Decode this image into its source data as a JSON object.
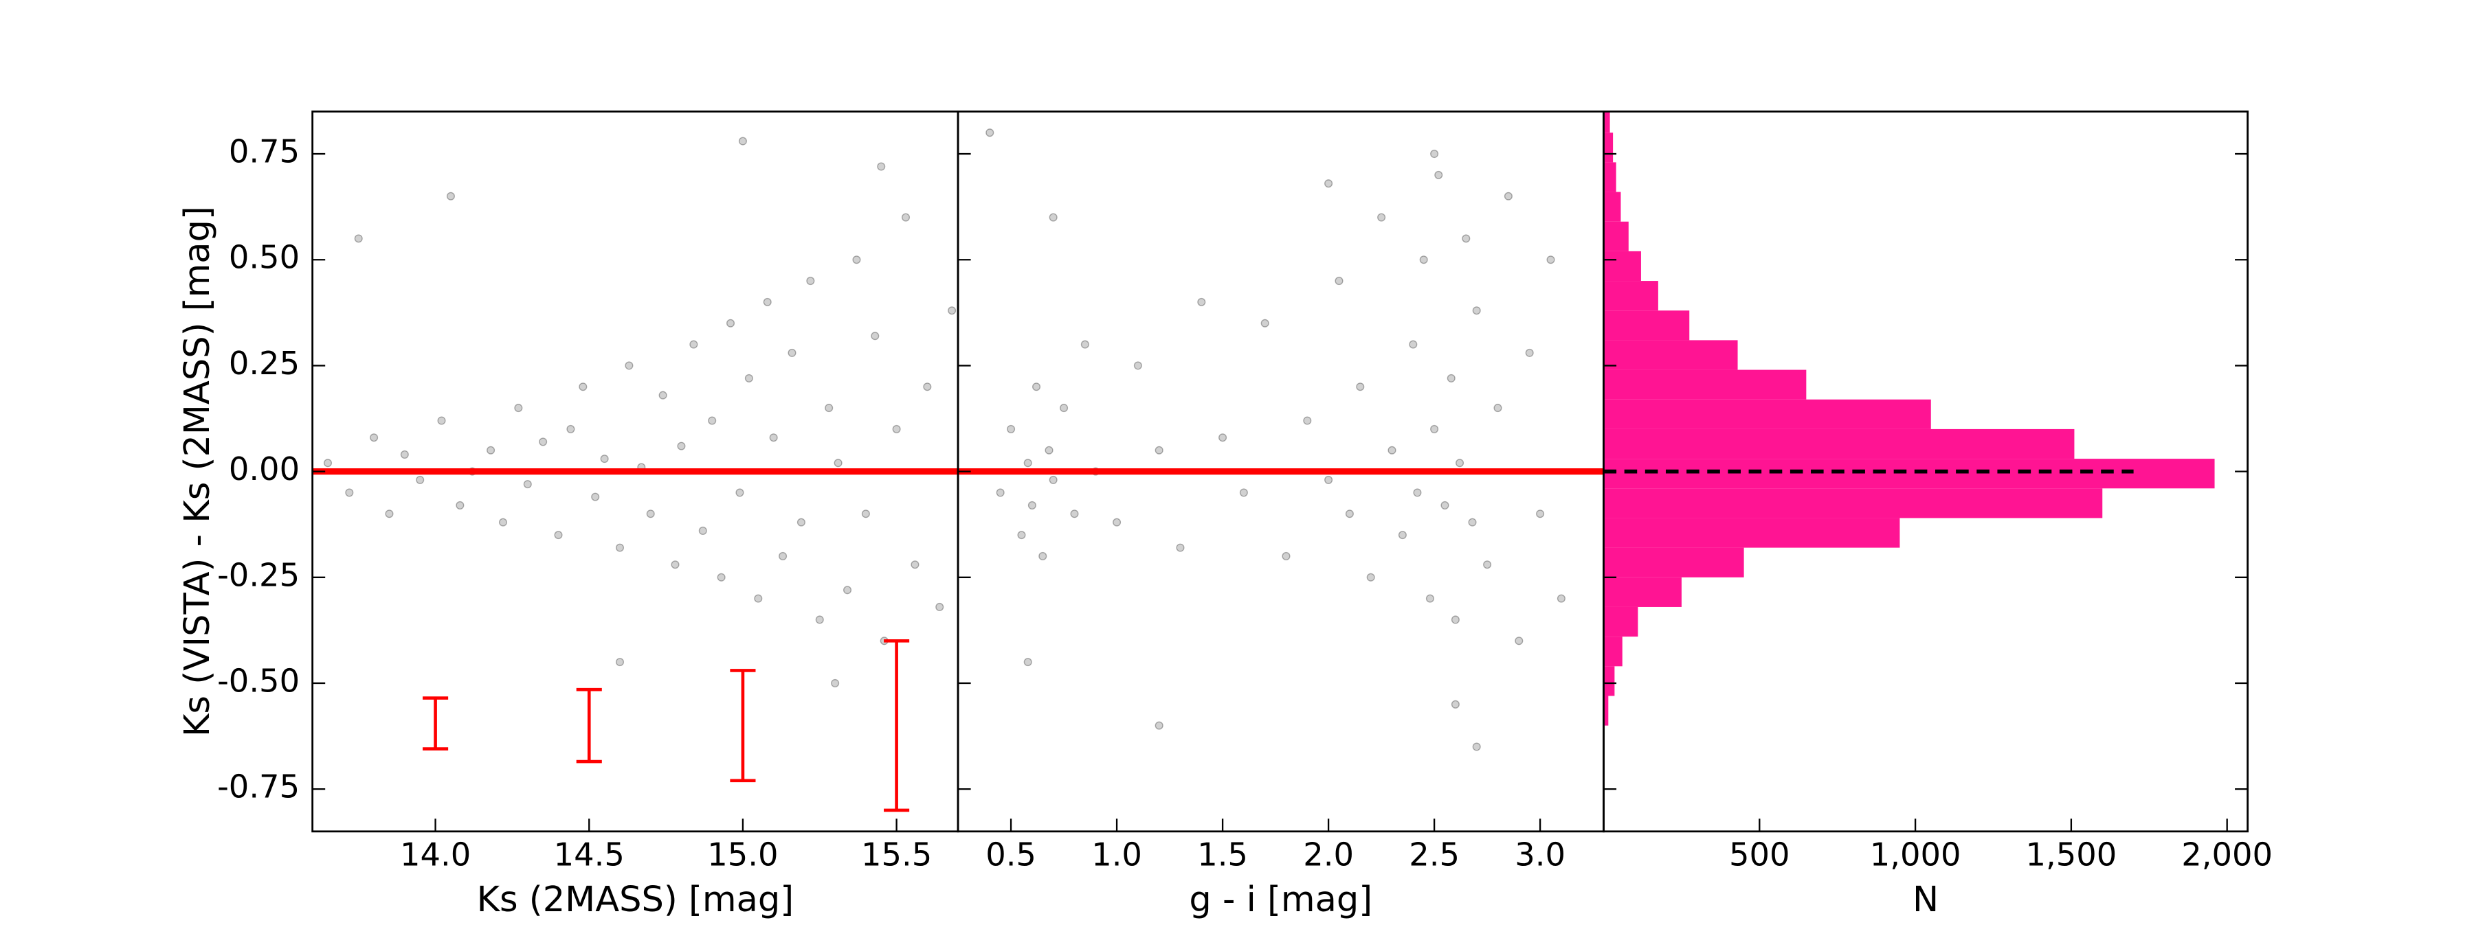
{
  "chart_data": [
    {
      "type": "scatter",
      "xlabel": "Ks (2MASS) [mag]",
      "ylabel": "Ks (VISTA) - Ks (2MASS) [mag]",
      "color": "#000000",
      "x": [
        13.65,
        13.72,
        13.8,
        13.85,
        13.9,
        13.95,
        14.02,
        14.08,
        14.12,
        14.18,
        14.22,
        14.27,
        14.3,
        14.35,
        14.4,
        14.44,
        14.48,
        14.52,
        14.55,
        14.6,
        14.63,
        14.67,
        14.7,
        14.74,
        14.78,
        14.8,
        14.84,
        14.87,
        14.9,
        14.93,
        14.96,
        14.99,
        15.02,
        15.05,
        15.08,
        15.1,
        15.13,
        15.16,
        15.19,
        15.22,
        15.25,
        15.28,
        15.31,
        15.34,
        15.37,
        15.4,
        15.43,
        15.46,
        15.5,
        15.53,
        15.56,
        15.6,
        15.64,
        15.68,
        14.05,
        14.6,
        15.0,
        15.3,
        13.75,
        15.45
      ],
      "y": [
        0.02,
        -0.05,
        0.08,
        -0.1,
        0.04,
        -0.02,
        0.12,
        -0.08,
        0.0,
        0.05,
        -0.12,
        0.15,
        -0.03,
        0.07,
        -0.15,
        0.1,
        0.2,
        -0.06,
        0.03,
        -0.18,
        0.25,
        0.01,
        -0.1,
        0.18,
        -0.22,
        0.06,
        0.3,
        -0.14,
        0.12,
        -0.25,
        0.35,
        -0.05,
        0.22,
        -0.3,
        0.4,
        0.08,
        -0.2,
        0.28,
        -0.12,
        0.45,
        -0.35,
        0.15,
        0.02,
        -0.28,
        0.5,
        -0.1,
        0.32,
        -0.4,
        0.1,
        0.6,
        -0.22,
        0.2,
        -0.32,
        0.38,
        0.65,
        -0.45,
        0.78,
        -0.5,
        0.55,
        0.72
      ],
      "xlim": [
        13.6,
        15.7
      ],
      "xticks": [
        {
          "value": 14,
          "label": "14.0"
        },
        {
          "value": 14.5,
          "label": "14.5"
        },
        {
          "value": 15,
          "label": "15.0"
        },
        {
          "value": 15.5,
          "label": "15.5"
        }
      ],
      "ylim": [
        -0.85,
        0.85
      ],
      "yticks": [
        {
          "value": -0.75,
          "label": "-0.75"
        },
        {
          "value": -0.5,
          "label": "-0.50"
        },
        {
          "value": -0.25,
          "label": "-0.25"
        },
        {
          "value": 0,
          "label": "0.00"
        },
        {
          "value": 0.25,
          "label": "0.25"
        },
        {
          "value": 0.5,
          "label": "0.50"
        },
        {
          "value": 0.75,
          "label": "0.75"
        }
      ],
      "hline": {
        "y": 0,
        "color": "#ff0000"
      },
      "errorbars": {
        "x": [
          14,
          14.5,
          15,
          15.5
        ],
        "y": [
          -0.595,
          -0.6,
          -0.6,
          -0.6
        ],
        "err": [
          0.06,
          0.085,
          0.13,
          0.2
        ],
        "color": "#ff0000"
      }
    },
    {
      "type": "scatter",
      "xlabel": "g - i [mag]",
      "color": "#000000",
      "x": [
        0.45,
        0.5,
        0.55,
        0.58,
        0.6,
        0.62,
        0.65,
        0.68,
        0.7,
        0.75,
        0.8,
        0.85,
        0.9,
        1.0,
        1.1,
        1.2,
        1.3,
        1.4,
        1.5,
        1.6,
        1.7,
        1.8,
        1.9,
        2.0,
        2.05,
        2.1,
        2.15,
        2.2,
        2.25,
        2.3,
        2.35,
        2.4,
        2.42,
        2.45,
        2.48,
        2.5,
        2.52,
        2.55,
        2.58,
        2.6,
        2.62,
        2.65,
        2.68,
        2.7,
        2.75,
        2.8,
        2.85,
        2.9,
        2.95,
        3.0,
        3.05,
        3.1,
        0.4,
        0.58,
        2.5,
        2.6,
        1.2,
        2.0,
        0.7,
        2.7
      ],
      "y": [
        -0.05,
        0.1,
        -0.15,
        0.02,
        -0.08,
        0.2,
        -0.2,
        0.05,
        -0.02,
        0.15,
        -0.1,
        0.3,
        0.0,
        -0.12,
        0.25,
        0.05,
        -0.18,
        0.4,
        0.08,
        -0.05,
        0.35,
        -0.2,
        0.12,
        -0.02,
        0.45,
        -0.1,
        0.2,
        -0.25,
        0.6,
        0.05,
        -0.15,
        0.3,
        -0.05,
        0.5,
        -0.3,
        0.1,
        0.7,
        -0.08,
        0.22,
        -0.35,
        0.02,
        0.55,
        -0.12,
        0.38,
        -0.22,
        0.15,
        0.65,
        -0.4,
        0.28,
        -0.1,
        0.5,
        -0.3,
        0.8,
        -0.45,
        0.75,
        -0.55,
        -0.6,
        0.68,
        0.6,
        -0.65
      ],
      "xlim": [
        0.25,
        3.3
      ],
      "xticks": [
        {
          "value": 0.5,
          "label": "0.5"
        },
        {
          "value": 1,
          "label": "1.0"
        },
        {
          "value": 1.5,
          "label": "1.5"
        },
        {
          "value": 2,
          "label": "2.0"
        },
        {
          "value": 2.5,
          "label": "2.5"
        },
        {
          "value": 3,
          "label": "3.0"
        }
      ],
      "hline": {
        "y": 0,
        "color": "#ff0000"
      }
    },
    {
      "type": "hist_h",
      "xlabel": "N",
      "color": "#ff1493",
      "bins": [
        -0.6,
        -0.53,
        -0.46,
        -0.39,
        -0.32,
        -0.25,
        -0.18,
        -0.11,
        -0.04,
        0.03,
        0.1,
        0.17,
        0.24,
        0.31,
        0.38,
        0.45,
        0.52,
        0.59,
        0.66,
        0.73,
        0.8,
        0.87
      ],
      "counts": [
        15,
        35,
        60,
        110,
        250,
        450,
        950,
        1600,
        1960,
        1510,
        1050,
        650,
        430,
        275,
        175,
        120,
        80,
        55,
        40,
        30,
        20
      ],
      "xlim": [
        0,
        2066
      ],
      "xticks": [
        {
          "value": 500,
          "label": "500"
        },
        {
          "value": 1000,
          "label": "1,000"
        },
        {
          "value": 1500,
          "label": "1,500"
        },
        {
          "value": 2000,
          "label": "2,000"
        }
      ],
      "refline": {
        "y": 0,
        "x_end": 1700,
        "color": "#000000"
      }
    }
  ]
}
